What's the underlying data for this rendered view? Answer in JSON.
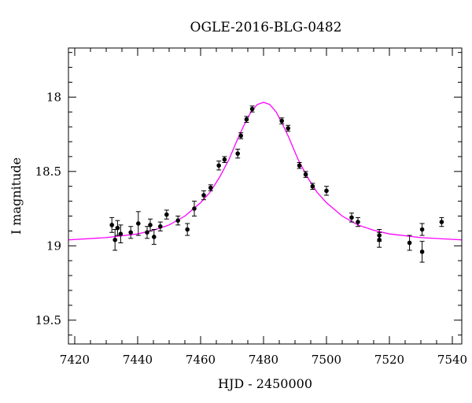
{
  "chart_data": {
    "type": "scatter",
    "title": "OGLE-2016-BLG-0482",
    "xlabel": "HJD - 2450000",
    "ylabel": "I magnitude",
    "xlim": [
      7418,
      7543
    ],
    "ylim": [
      19.66,
      17.67
    ],
    "y_inverted": true,
    "grid": false,
    "xticks": [
      "7420",
      "7440",
      "7460",
      "7480",
      "7500",
      "7520",
      "7540"
    ],
    "yticks": [
      "18",
      "18.5",
      "19",
      "19.5"
    ],
    "series": [
      {
        "kind": "points_with_errorbars",
        "color": "#000000",
        "points": [
          {
            "x": 7431.8,
            "y": 18.86,
            "err": 0.05
          },
          {
            "x": 7432.8,
            "y": 18.96,
            "err": 0.07
          },
          {
            "x": 7433.6,
            "y": 18.88,
            "err": 0.05
          },
          {
            "x": 7434.6,
            "y": 18.92,
            "err": 0.06
          },
          {
            "x": 7437.8,
            "y": 18.91,
            "err": 0.04
          },
          {
            "x": 7440.2,
            "y": 18.85,
            "err": 0.08
          },
          {
            "x": 7443.0,
            "y": 18.91,
            "err": 0.04
          },
          {
            "x": 7444.0,
            "y": 18.86,
            "err": 0.04
          },
          {
            "x": 7445.2,
            "y": 18.94,
            "err": 0.05
          },
          {
            "x": 7447.2,
            "y": 18.87,
            "err": 0.03
          },
          {
            "x": 7449.2,
            "y": 18.79,
            "err": 0.03
          },
          {
            "x": 7452.8,
            "y": 18.83,
            "err": 0.03
          },
          {
            "x": 7455.8,
            "y": 18.89,
            "err": 0.04
          },
          {
            "x": 7458.0,
            "y": 18.75,
            "err": 0.05
          },
          {
            "x": 7461.0,
            "y": 18.66,
            "err": 0.03
          },
          {
            "x": 7463.2,
            "y": 18.61,
            "err": 0.02
          },
          {
            "x": 7465.8,
            "y": 18.46,
            "err": 0.03
          },
          {
            "x": 7467.6,
            "y": 18.42,
            "err": 0.02
          },
          {
            "x": 7471.8,
            "y": 18.38,
            "err": 0.03
          },
          {
            "x": 7472.8,
            "y": 18.26,
            "err": 0.02
          },
          {
            "x": 7474.6,
            "y": 18.15,
            "err": 0.02
          },
          {
            "x": 7476.4,
            "y": 18.08,
            "err": 0.02
          },
          {
            "x": 7485.8,
            "y": 18.16,
            "err": 0.02
          },
          {
            "x": 7487.8,
            "y": 18.21,
            "err": 0.02
          },
          {
            "x": 7491.4,
            "y": 18.46,
            "err": 0.02
          },
          {
            "x": 7493.4,
            "y": 18.52,
            "err": 0.02
          },
          {
            "x": 7495.6,
            "y": 18.6,
            "err": 0.02
          },
          {
            "x": 7500.0,
            "y": 18.63,
            "err": 0.03
          },
          {
            "x": 7508.0,
            "y": 18.81,
            "err": 0.03
          },
          {
            "x": 7510.0,
            "y": 18.84,
            "err": 0.03
          },
          {
            "x": 7516.8,
            "y": 18.93,
            "err": 0.04
          },
          {
            "x": 7516.8,
            "y": 18.96,
            "err": 0.05
          },
          {
            "x": 7526.4,
            "y": 18.98,
            "err": 0.05
          },
          {
            "x": 7530.4,
            "y": 19.04,
            "err": 0.07
          },
          {
            "x": 7530.4,
            "y": 18.89,
            "err": 0.04
          },
          {
            "x": 7536.6,
            "y": 18.84,
            "err": 0.03
          }
        ]
      },
      {
        "kind": "model_curve",
        "color": "#ff00ff",
        "points": [
          {
            "x": 7418,
            "y": 18.96
          },
          {
            "x": 7430,
            "y": 18.945
          },
          {
            "x": 7440,
            "y": 18.92
          },
          {
            "x": 7445,
            "y": 18.895
          },
          {
            "x": 7450,
            "y": 18.86
          },
          {
            "x": 7455,
            "y": 18.8
          },
          {
            "x": 7460,
            "y": 18.71
          },
          {
            "x": 7463,
            "y": 18.64
          },
          {
            "x": 7466,
            "y": 18.54
          },
          {
            "x": 7469,
            "y": 18.42
          },
          {
            "x": 7472,
            "y": 18.27
          },
          {
            "x": 7474,
            "y": 18.18
          },
          {
            "x": 7476,
            "y": 18.1
          },
          {
            "x": 7478,
            "y": 18.05
          },
          {
            "x": 7480,
            "y": 18.035
          },
          {
            "x": 7482,
            "y": 18.05
          },
          {
            "x": 7484,
            "y": 18.1
          },
          {
            "x": 7486,
            "y": 18.18
          },
          {
            "x": 7488,
            "y": 18.27
          },
          {
            "x": 7491,
            "y": 18.42
          },
          {
            "x": 7494,
            "y": 18.54
          },
          {
            "x": 7497,
            "y": 18.64
          },
          {
            "x": 7500,
            "y": 18.71
          },
          {
            "x": 7505,
            "y": 18.8
          },
          {
            "x": 7510,
            "y": 18.86
          },
          {
            "x": 7515,
            "y": 18.895
          },
          {
            "x": 7520,
            "y": 18.92
          },
          {
            "x": 7530,
            "y": 18.945
          },
          {
            "x": 7543,
            "y": 18.96
          }
        ]
      }
    ]
  }
}
